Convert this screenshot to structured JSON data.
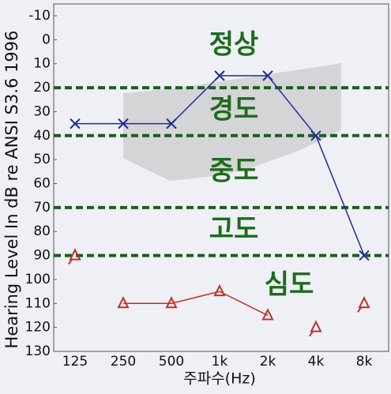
{
  "chart_data": {
    "type": "audiogram",
    "ylabel": "Hearing Level In dB re ANSI S3.6 1996",
    "xlabel": "주파수(Hz)",
    "categories": [
      "125",
      "250",
      "500",
      "1k",
      "2k",
      "4k",
      "8k"
    ],
    "ylim": [
      -10,
      130
    ],
    "yticks": [
      -10,
      0,
      10,
      20,
      30,
      40,
      50,
      60,
      70,
      80,
      90,
      100,
      110,
      120,
      130
    ],
    "inverted_y": true,
    "threshold_lines": [
      20,
      40,
      70,
      90
    ],
    "threshold_color": "#1d5e1d",
    "severity_labels": [
      "정상",
      "경도",
      "중도",
      "고도",
      "심도"
    ],
    "series": [
      {
        "marker": "x",
        "color": "#1f2e99",
        "values": [
          35,
          35,
          35,
          15,
          15,
          40,
          90
        ],
        "no_response": [
          false,
          false,
          false,
          false,
          false,
          false,
          false
        ]
      },
      {
        "marker": "triangle",
        "color": "#c0302a",
        "values": [
          90,
          110,
          110,
          105,
          115,
          120,
          110
        ],
        "no_response": [
          true,
          false,
          false,
          false,
          false,
          true,
          true
        ]
      }
    ]
  }
}
